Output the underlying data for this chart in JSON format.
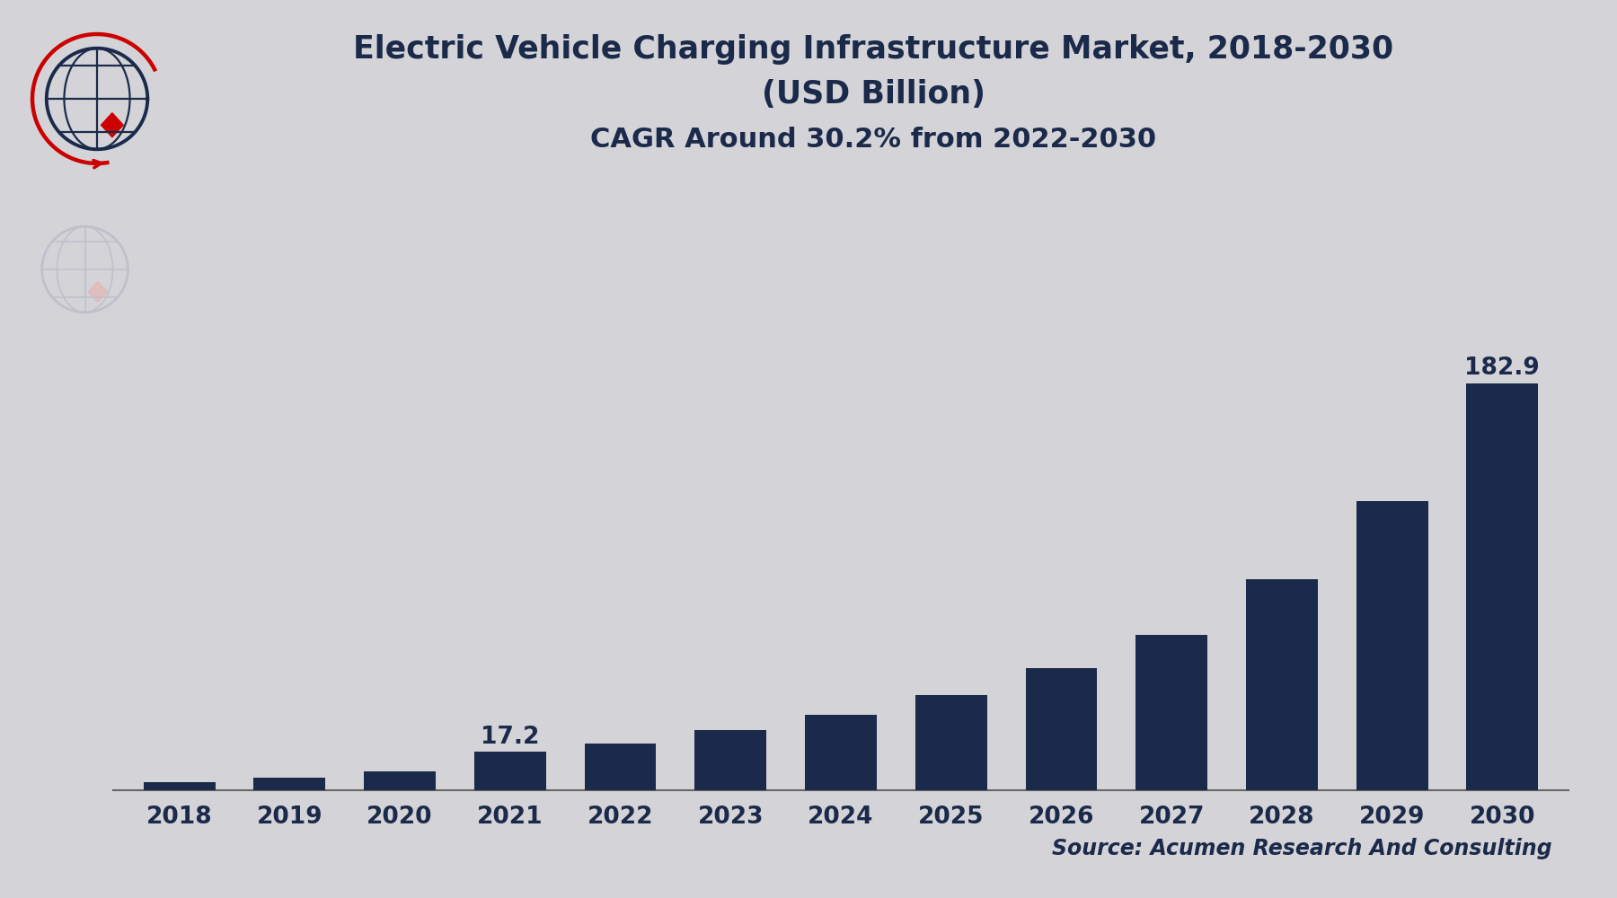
{
  "title_line1": "Electric Vehicle Charging Infrastructure Market, 2018-2030",
  "title_line2": "(USD Billion)",
  "title_line3": "CAGR Around 30.2% from 2022-2030",
  "source_text": "Source: Acumen Research And Consulting",
  "years": [
    2018,
    2019,
    2020,
    2021,
    2022,
    2023,
    2024,
    2025,
    2026,
    2027,
    2028,
    2029,
    2030
  ],
  "values": [
    3.5,
    5.5,
    8.5,
    17.2,
    21.0,
    27.0,
    34.0,
    43.0,
    55.0,
    70.0,
    95.0,
    130.0,
    182.9
  ],
  "bar_color": "#1b2a4a",
  "background_color": "#d4d4d8",
  "text_color": "#1b2a4a",
  "label_2021": "17.2",
  "label_2030": "182.9",
  "ylim": [
    0,
    210
  ],
  "title_fontsize": 25,
  "subtitle_fontsize": 25,
  "cagr_fontsize": 22,
  "tick_fontsize": 19,
  "source_fontsize": 17,
  "label_fontsize": 19
}
